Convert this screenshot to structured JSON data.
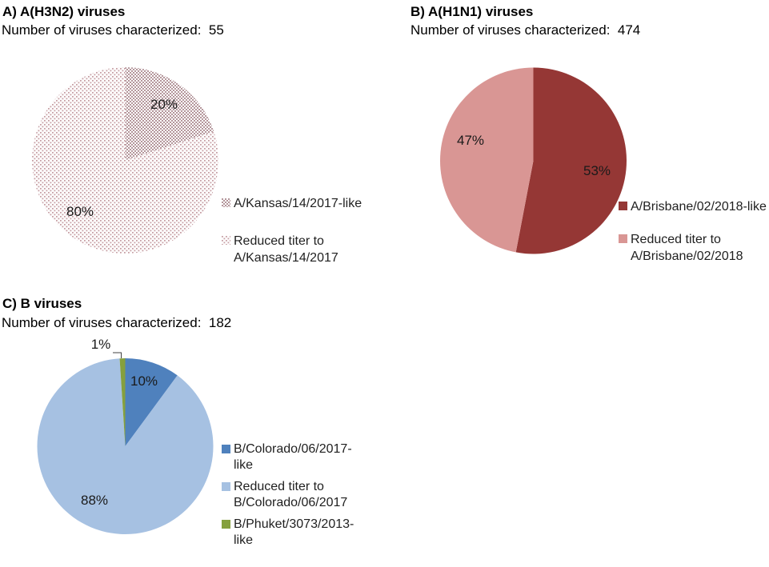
{
  "figure": {
    "background_color": "#FFFFFF",
    "subtitle_prefix": "Number of viruses characterized:"
  },
  "chart_data": [
    {
      "type": "pie",
      "panel": "A",
      "title": "A) A(H3N2) viruses",
      "subtitle": "Number of viruses characterized:  55",
      "n_characterized": 55,
      "labels": [
        "A/Kansas/14/2017-like",
        "Reduced titer to A/Kansas/14/2017"
      ],
      "values": [
        20,
        80
      ],
      "pct_labels": [
        "20%",
        "80%"
      ],
      "fills": [
        {
          "pattern": "dense-dots",
          "color": "#B4969B",
          "background": "#FFFFFF"
        },
        {
          "pattern": "sparse-dots",
          "color": "#C7A0A5",
          "background": "#FFFFFF"
        }
      ],
      "legend_position": "right",
      "start_angle_deg": 0,
      "direction": "clockwise"
    },
    {
      "type": "pie",
      "panel": "B",
      "title": "B) A(H1N1) viruses",
      "subtitle": "Number of viruses characterized:  474",
      "n_characterized": 474,
      "labels": [
        "A/Brisbane/02/2018-like",
        "Reduced titer to A/Brisbane/02/2018"
      ],
      "values": [
        53,
        47
      ],
      "pct_labels": [
        "53%",
        "47%"
      ],
      "fills": [
        {
          "color": "#953735"
        },
        {
          "color": "#D99694"
        }
      ],
      "legend_position": "right",
      "start_angle_deg": 0,
      "direction": "clockwise"
    },
    {
      "type": "pie",
      "panel": "C",
      "title": "C) B viruses",
      "subtitle": "Number of viruses characterized:  182",
      "n_characterized": 182,
      "labels": [
        "B/Colorado/06/2017-like",
        "Reduced titer to B/Colorado/06/2017",
        "B/Phuket/3073/2013-like"
      ],
      "values": [
        10,
        88,
        1
      ],
      "pct_labels": [
        "10%",
        "88%",
        "1%"
      ],
      "fills": [
        {
          "color": "#4F81BD"
        },
        {
          "color": "#A6C1E2"
        },
        {
          "color": "#85A03E"
        }
      ],
      "legend_position": "right",
      "start_angle_deg": 0,
      "direction": "clockwise",
      "outside_label": {
        "slice_index": 2,
        "leader_color": "#404040"
      }
    }
  ]
}
